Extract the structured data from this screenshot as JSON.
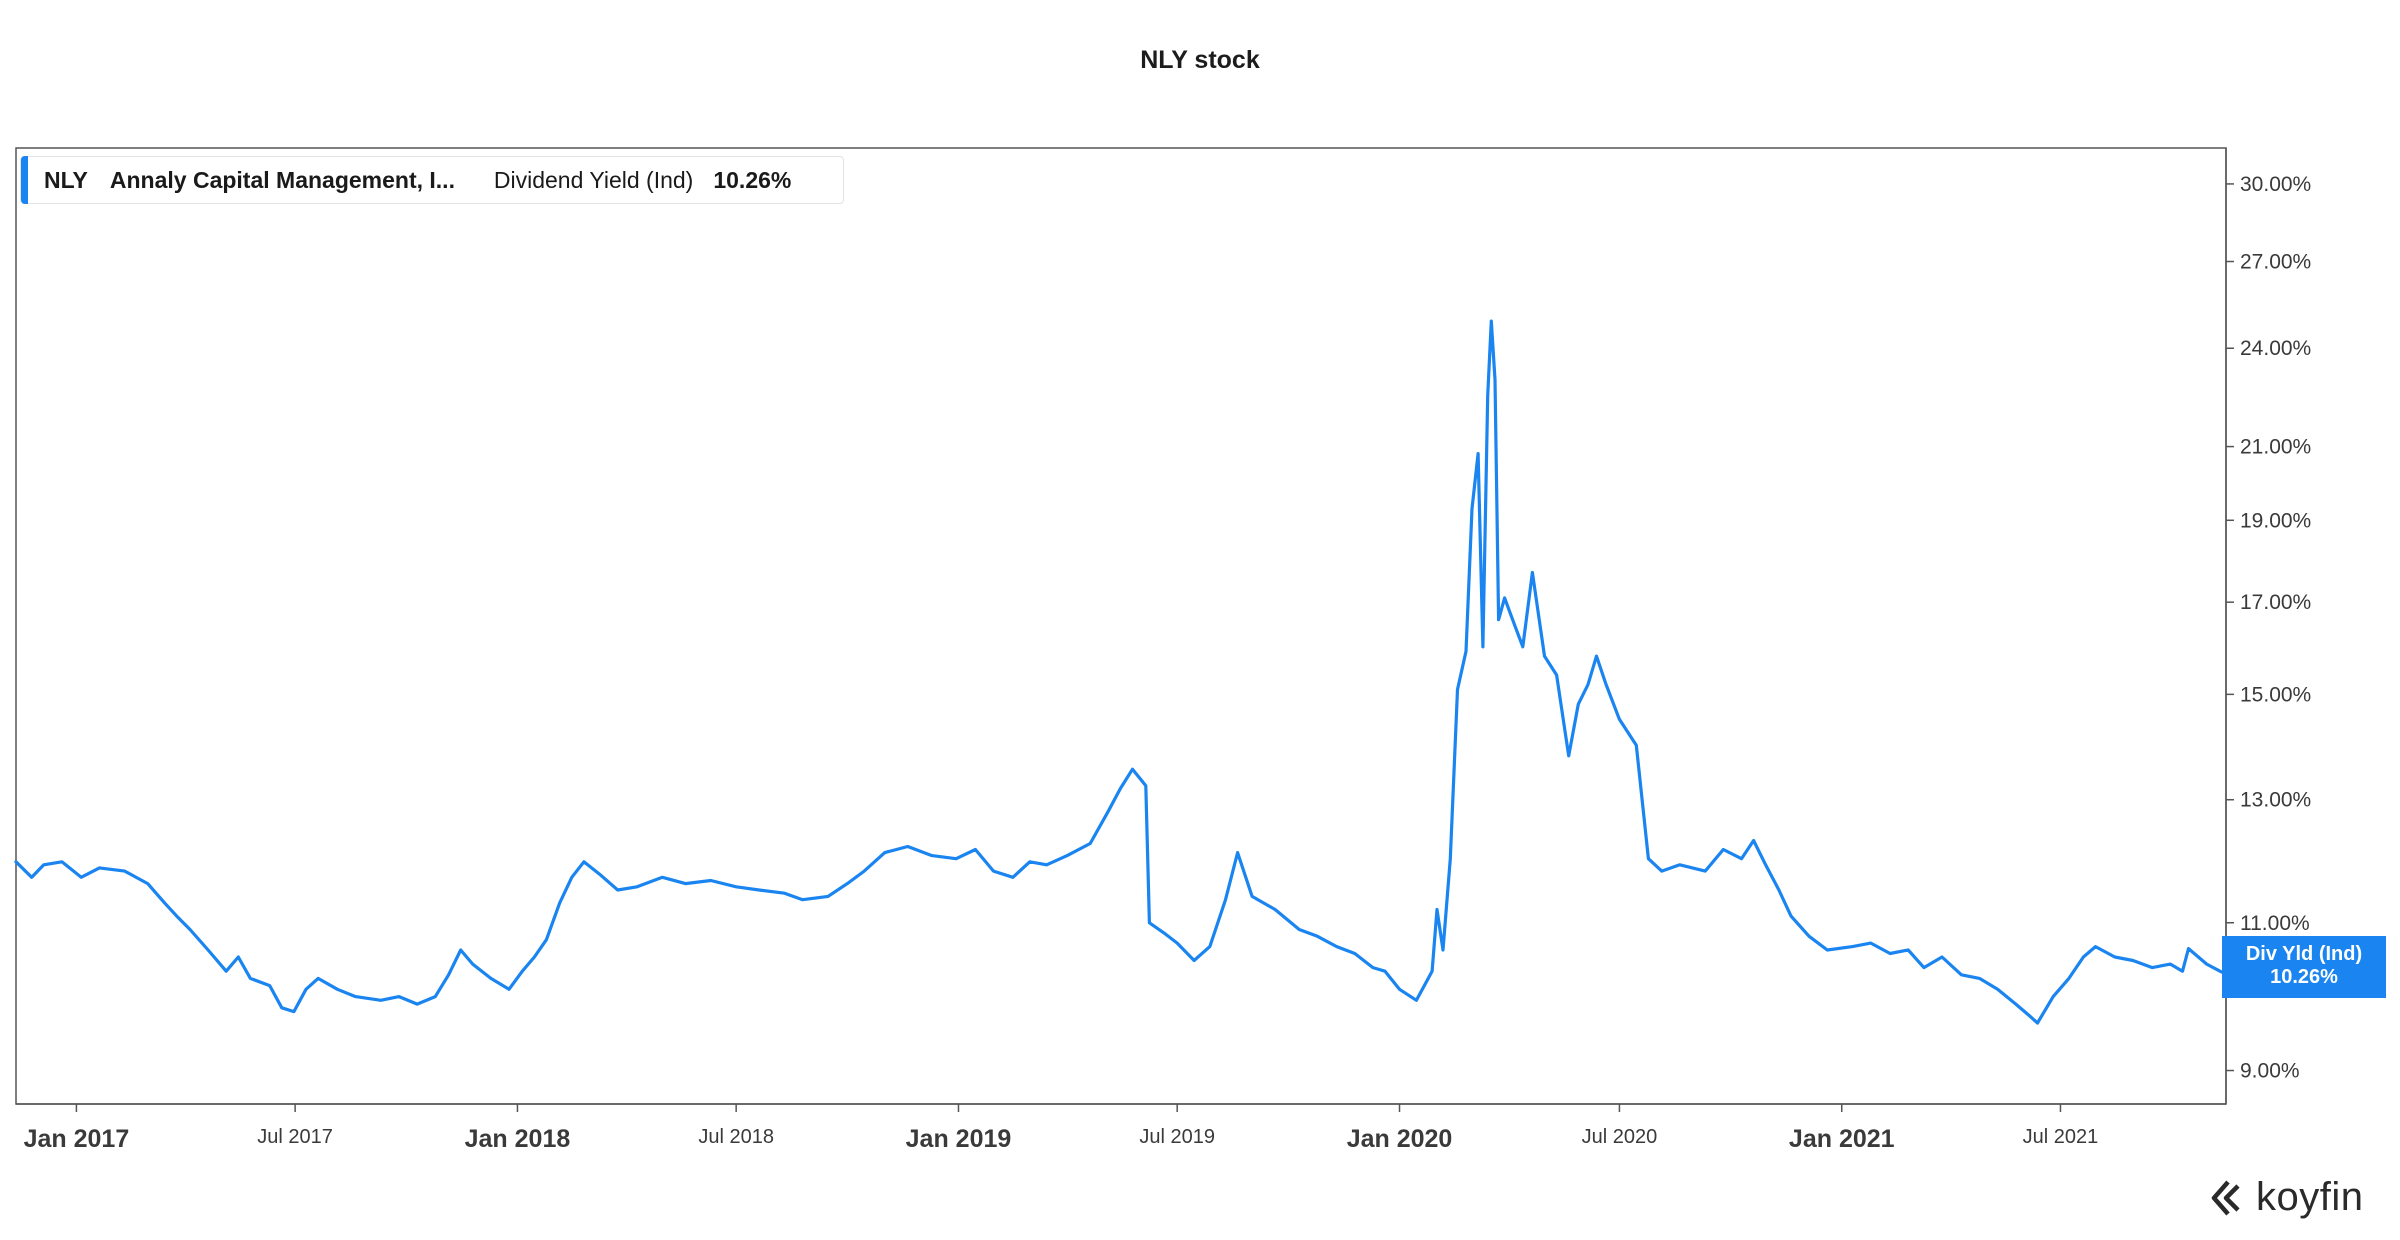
{
  "title": "NLY stock",
  "legend": {
    "ticker": "NLY",
    "company": "Annaly Capital Management, I...",
    "metric": "Dividend Yield (Ind)",
    "value": "10.26%"
  },
  "badge": {
    "label": "Div Yld (Ind)",
    "value": "10.26%"
  },
  "logo": {
    "icon": "koyfin-logo-icon",
    "text": "koyfin"
  },
  "colors": {
    "line": "#1a85f0",
    "badge": "#1a85f0",
    "axis": "#555555"
  },
  "chart_data": {
    "type": "line",
    "title": "NLY stock",
    "xlabel": "",
    "ylabel": "",
    "y_scale": "log",
    "ylim": [
      8.6,
      31.5
    ],
    "xlim": [
      "2016-11-12",
      "2021-11-15"
    ],
    "grid": false,
    "legend_position": "top-left",
    "y_ticks": [
      {
        "value": 30,
        "label": "30.00%"
      },
      {
        "value": 27,
        "label": "27.00%"
      },
      {
        "value": 24,
        "label": "24.00%"
      },
      {
        "value": 21,
        "label": "21.00%"
      },
      {
        "value": 19,
        "label": "19.00%"
      },
      {
        "value": 17,
        "label": "17.00%"
      },
      {
        "value": 15,
        "label": "15.00%"
      },
      {
        "value": 13,
        "label": "13.00%"
      },
      {
        "value": 11,
        "label": "11.00%"
      },
      {
        "value": 9,
        "label": "9.00%"
      }
    ],
    "x_ticks": [
      {
        "date": "2017-01-01",
        "label": "Jan 2017",
        "major": true
      },
      {
        "date": "2017-07-01",
        "label": "Jul 2017",
        "major": false
      },
      {
        "date": "2018-01-01",
        "label": "Jan 2018",
        "major": true
      },
      {
        "date": "2018-07-01",
        "label": "Jul 2018",
        "major": false
      },
      {
        "date": "2019-01-01",
        "label": "Jan 2019",
        "major": true
      },
      {
        "date": "2019-07-01",
        "label": "Jul 2019",
        "major": false
      },
      {
        "date": "2020-01-01",
        "label": "Jan 2020",
        "major": true
      },
      {
        "date": "2020-07-01",
        "label": "Jul 2020",
        "major": false
      },
      {
        "date": "2021-01-01",
        "label": "Jan 2021",
        "major": true
      },
      {
        "date": "2021-07-01",
        "label": "Jul 2021",
        "major": false
      }
    ],
    "series": [
      {
        "name": "NLY",
        "points": [
          [
            "2016-11-12",
            11.95
          ],
          [
            "2016-11-25",
            11.7
          ],
          [
            "2016-12-05",
            11.9
          ],
          [
            "2016-12-20",
            11.95
          ],
          [
            "2017-01-05",
            11.7
          ],
          [
            "2017-01-20",
            11.85
          ],
          [
            "2017-02-10",
            11.8
          ],
          [
            "2017-03-01",
            11.6
          ],
          [
            "2017-03-15",
            11.3
          ],
          [
            "2017-03-25",
            11.1
          ],
          [
            "2017-04-05",
            10.9
          ],
          [
            "2017-04-20",
            10.6
          ],
          [
            "2017-05-05",
            10.3
          ],
          [
            "2017-05-15",
            10.5
          ],
          [
            "2017-05-25",
            10.2
          ],
          [
            "2017-06-10",
            10.1
          ],
          [
            "2017-06-20",
            9.8
          ],
          [
            "2017-06-30",
            9.75
          ],
          [
            "2017-07-10",
            10.05
          ],
          [
            "2017-07-20",
            10.2
          ],
          [
            "2017-08-05",
            10.05
          ],
          [
            "2017-08-20",
            9.95
          ],
          [
            "2017-09-10",
            9.9
          ],
          [
            "2017-09-25",
            9.95
          ],
          [
            "2017-10-10",
            9.85
          ],
          [
            "2017-10-25",
            9.95
          ],
          [
            "2017-11-05",
            10.25
          ],
          [
            "2017-11-15",
            10.6
          ],
          [
            "2017-11-25",
            10.4
          ],
          [
            "2017-12-10",
            10.2
          ],
          [
            "2017-12-25",
            10.05
          ],
          [
            "2018-01-05",
            10.3
          ],
          [
            "2018-01-15",
            10.5
          ],
          [
            "2018-01-25",
            10.75
          ],
          [
            "2018-02-05",
            11.3
          ],
          [
            "2018-02-15",
            11.7
          ],
          [
            "2018-02-25",
            11.95
          ],
          [
            "2018-03-10",
            11.75
          ],
          [
            "2018-03-25",
            11.5
          ],
          [
            "2018-04-10",
            11.55
          ],
          [
            "2018-05-01",
            11.7
          ],
          [
            "2018-05-20",
            11.6
          ],
          [
            "2018-06-10",
            11.65
          ],
          [
            "2018-07-01",
            11.55
          ],
          [
            "2018-07-20",
            11.5
          ],
          [
            "2018-08-10",
            11.45
          ],
          [
            "2018-08-25",
            11.35
          ],
          [
            "2018-09-15",
            11.4
          ],
          [
            "2018-10-01",
            11.6
          ],
          [
            "2018-10-15",
            11.8
          ],
          [
            "2018-11-01",
            12.1
          ],
          [
            "2018-11-20",
            12.2
          ],
          [
            "2018-12-10",
            12.05
          ],
          [
            "2018-12-30",
            12.0
          ],
          [
            "2019-01-15",
            12.15
          ],
          [
            "2019-01-30",
            11.8
          ],
          [
            "2019-02-15",
            11.7
          ],
          [
            "2019-03-01",
            11.95
          ],
          [
            "2019-03-15",
            11.9
          ],
          [
            "2019-04-01",
            12.05
          ],
          [
            "2019-04-20",
            12.25
          ],
          [
            "2019-05-05",
            12.8
          ],
          [
            "2019-05-15",
            13.2
          ],
          [
            "2019-05-25",
            13.55
          ],
          [
            "2019-06-05",
            13.25
          ],
          [
            "2019-06-08",
            11.0
          ],
          [
            "2019-06-20",
            10.85
          ],
          [
            "2019-07-01",
            10.7
          ],
          [
            "2019-07-15",
            10.45
          ],
          [
            "2019-07-28",
            10.65
          ],
          [
            "2019-08-10",
            11.35
          ],
          [
            "2019-08-20",
            12.1
          ],
          [
            "2019-09-01",
            11.4
          ],
          [
            "2019-09-20",
            11.2
          ],
          [
            "2019-10-10",
            10.9
          ],
          [
            "2019-10-25",
            10.8
          ],
          [
            "2019-11-10",
            10.65
          ],
          [
            "2019-11-25",
            10.55
          ],
          [
            "2019-12-10",
            10.35
          ],
          [
            "2019-12-20",
            10.3
          ],
          [
            "2020-01-01",
            10.05
          ],
          [
            "2020-01-15",
            9.9
          ],
          [
            "2020-01-28",
            10.3
          ],
          [
            "2020-02-01",
            11.2
          ],
          [
            "2020-02-06",
            10.6
          ],
          [
            "2020-02-12",
            12.0
          ],
          [
            "2020-02-18",
            15.1
          ],
          [
            "2020-02-25",
            15.9
          ],
          [
            "2020-03-01",
            19.3
          ],
          [
            "2020-03-06",
            20.8
          ],
          [
            "2020-03-10",
            16.0
          ],
          [
            "2020-03-14",
            22.5
          ],
          [
            "2020-03-17",
            24.9
          ],
          [
            "2020-03-20",
            23.0
          ],
          [
            "2020-03-23",
            16.6
          ],
          [
            "2020-03-28",
            17.1
          ],
          [
            "2020-04-05",
            16.5
          ],
          [
            "2020-04-12",
            16.0
          ],
          [
            "2020-04-20",
            17.7
          ],
          [
            "2020-04-30",
            15.8
          ],
          [
            "2020-05-10",
            15.4
          ],
          [
            "2020-05-20",
            13.8
          ],
          [
            "2020-05-28",
            14.8
          ],
          [
            "2020-06-05",
            15.2
          ],
          [
            "2020-06-12",
            15.8
          ],
          [
            "2020-06-20",
            15.2
          ],
          [
            "2020-07-01",
            14.5
          ],
          [
            "2020-07-15",
            14.0
          ],
          [
            "2020-07-25",
            12.0
          ],
          [
            "2020-08-05",
            11.8
          ],
          [
            "2020-08-20",
            11.9
          ],
          [
            "2020-09-10",
            11.8
          ],
          [
            "2020-09-25",
            12.15
          ],
          [
            "2020-10-10",
            12.0
          ],
          [
            "2020-10-20",
            12.3
          ],
          [
            "2020-10-30",
            11.9
          ],
          [
            "2020-11-10",
            11.5
          ],
          [
            "2020-11-20",
            11.1
          ],
          [
            "2020-12-05",
            10.8
          ],
          [
            "2020-12-20",
            10.6
          ],
          [
            "2021-01-10",
            10.65
          ],
          [
            "2021-01-25",
            10.7
          ],
          [
            "2021-02-10",
            10.55
          ],
          [
            "2021-02-25",
            10.6
          ],
          [
            "2021-03-10",
            10.35
          ],
          [
            "2021-03-25",
            10.5
          ],
          [
            "2021-04-10",
            10.25
          ],
          [
            "2021-04-25",
            10.2
          ],
          [
            "2021-05-10",
            10.05
          ],
          [
            "2021-05-25",
            9.85
          ],
          [
            "2021-06-05",
            9.7
          ],
          [
            "2021-06-12",
            9.6
          ],
          [
            "2021-06-25",
            9.95
          ],
          [
            "2021-07-08",
            10.2
          ],
          [
            "2021-07-20",
            10.5
          ],
          [
            "2021-07-30",
            10.65
          ],
          [
            "2021-08-15",
            10.5
          ],
          [
            "2021-08-30",
            10.45
          ],
          [
            "2021-09-15",
            10.35
          ],
          [
            "2021-09-30",
            10.4
          ],
          [
            "2021-10-10",
            10.3
          ],
          [
            "2021-10-15",
            10.62
          ],
          [
            "2021-10-30",
            10.4
          ],
          [
            "2021-11-10",
            10.3
          ],
          [
            "2021-11-15",
            10.26
          ]
        ]
      }
    ]
  }
}
